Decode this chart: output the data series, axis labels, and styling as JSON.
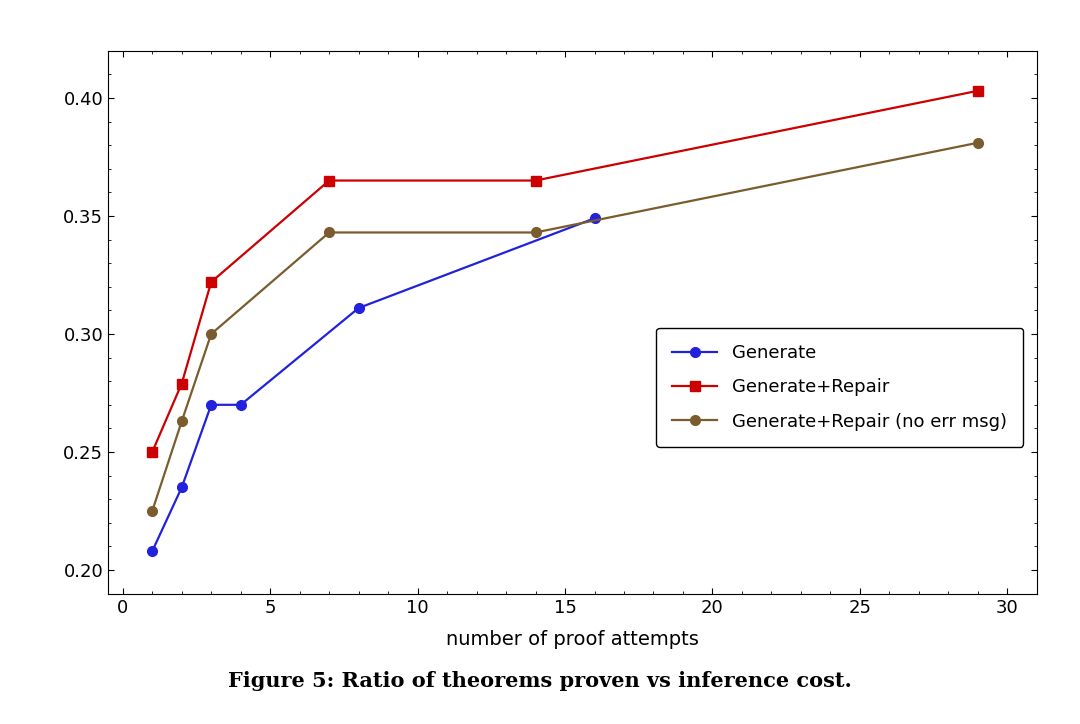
{
  "generate_x": [
    1,
    2,
    3,
    4,
    8,
    16
  ],
  "generate_y": [
    0.208,
    0.235,
    0.27,
    0.27,
    0.311,
    0.349
  ],
  "generate_repair_x": [
    1,
    2,
    3,
    7,
    14,
    29
  ],
  "generate_repair_y": [
    0.25,
    0.279,
    0.322,
    0.365,
    0.365,
    0.403
  ],
  "generate_repair_noerr_x": [
    1,
    2,
    3,
    7,
    14,
    29
  ],
  "generate_repair_noerr_y": [
    0.225,
    0.263,
    0.3,
    0.343,
    0.343,
    0.381
  ],
  "xlabel": "number of proof attempts",
  "xlim": [
    -0.5,
    31
  ],
  "ylim": [
    0.19,
    0.42
  ],
  "xticks": [
    0,
    5,
    10,
    15,
    20,
    25,
    30
  ],
  "yticks": [
    0.2,
    0.25,
    0.3,
    0.35,
    0.4
  ],
  "generate_color": "#2222dd",
  "generate_repair_color": "#cc0000",
  "generate_repair_noerr_color": "#7a5c2e",
  "legend_labels": [
    "Generate",
    "Generate+Repair",
    "Generate+Repair (no err msg)"
  ],
  "caption": "Figure 5: Ratio of theorems proven vs inference cost.",
  "background_color": "#ffffff",
  "linewidth": 1.6,
  "markersize": 7
}
